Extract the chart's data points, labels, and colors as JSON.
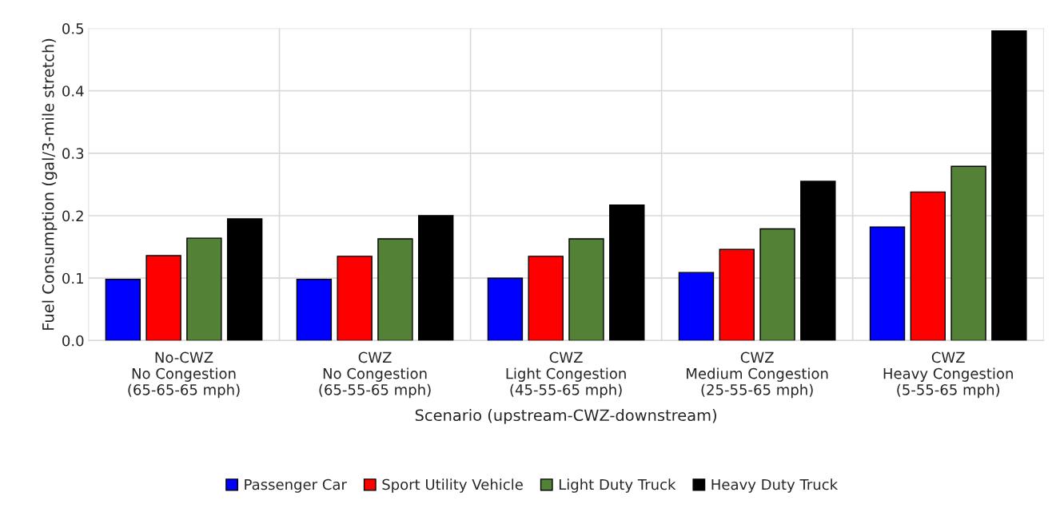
{
  "chart_data": {
    "type": "bar",
    "xlabel": "Scenario (upstream-CWZ-downstream)",
    "ylabel": "Fuel Consumption (gal/3-mile stretch)",
    "categories": [
      "No-CWZ\nNo Congestion\n(65-65-65 mph)",
      "CWZ\nNo Congestion\n(65-55-65 mph)",
      "CWZ\nLight Congestion\n(45-55-65 mph)",
      "CWZ\nMedium Congestion\n(25-55-65 mph)",
      "CWZ\nHeavy Congestion\n(5-55-65 mph)"
    ],
    "series": [
      {
        "name": "Passenger Car",
        "color": "#0000ff",
        "values": [
          0.098,
          0.098,
          0.1,
          0.109,
          0.182
        ]
      },
      {
        "name": "Sport Utility Vehicle",
        "color": "#ff0000",
        "values": [
          0.136,
          0.135,
          0.135,
          0.146,
          0.238
        ]
      },
      {
        "name": "Light Duty Truck",
        "color": "#538135",
        "values": [
          0.164,
          0.163,
          0.163,
          0.179,
          0.279
        ]
      },
      {
        "name": "Heavy Duty Truck",
        "color": "#000000",
        "values": [
          0.195,
          0.2,
          0.217,
          0.255,
          0.496
        ]
      }
    ],
    "ylim": [
      0,
      0.5
    ],
    "yticks": [
      {
        "value": 0,
        "label": "0.0"
      },
      0.1,
      0.2,
      0.3,
      0.4,
      0.5
    ],
    "grid": true,
    "legend": "bottom"
  }
}
